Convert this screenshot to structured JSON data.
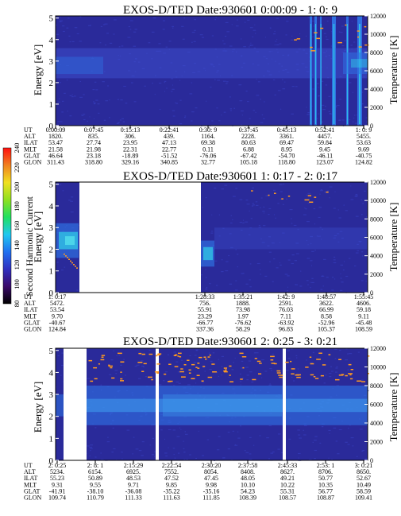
{
  "colors": {
    "background": "#2a2a9a",
    "band": "#2f6fe0",
    "band_core": "#3fa0f0",
    "cyan": "#30d0e8",
    "orange": "#ff9a20",
    "gap": "#ffffff"
  },
  "colorbar": {
    "label": "Second Harmonic Current",
    "ticks": [
      "80",
      "100",
      "120",
      "140",
      "160",
      "180",
      "200",
      "220",
      "240"
    ],
    "stops": [
      "#000000",
      "#3a0a6a",
      "#3030c0",
      "#2070f0",
      "#20c8f0",
      "#20e060",
      "#90e020",
      "#f0e020",
      "#f08020",
      "#ff1010"
    ]
  },
  "chart_data": [
    {
      "type": "heatmap",
      "title": "EXOS-D/TED   Date:930601  0:00:09 - 1: 0: 9",
      "ylabel": "Energy [eV]",
      "ylabel_right": "Temperature [K]",
      "yticks": [
        "0",
        "1",
        "2",
        "3",
        "4",
        "5"
      ],
      "ylim": [
        0,
        5.1
      ],
      "yticks_right": [
        "0",
        "2000",
        "4000",
        "6000",
        "8000",
        "10000",
        "12000"
      ],
      "ylim_right": [
        0,
        12000
      ],
      "ephemeris": {
        "labels": [
          "UT",
          "ALT",
          "ILAT",
          "MLT",
          "GLAT",
          "GLON"
        ],
        "columns": [
          [
            "0:00:09",
            "1820.",
            "53.47",
            "21.58",
            "46.64",
            "311.43"
          ],
          [
            "0:07:45",
            "835.",
            "27.74",
            "21.98",
            "23.18",
            "318.80"
          ],
          [
            "0:15:13",
            "306.",
            "23.95",
            "22.31",
            "-18.89",
            "329.16"
          ],
          [
            "0:22:41",
            "439.",
            "47.13",
            "22.77",
            "-51.52",
            "340.85"
          ],
          [
            "0:30: 9",
            "1164.",
            "69.38",
            "0.11",
            "-76.06",
            "32.77"
          ],
          [
            "0:37:45",
            "2228.",
            "80.63",
            "6.88",
            "-67.42",
            "105.18"
          ],
          [
            "0:45:13",
            "3361.",
            "69.47",
            "8.95",
            "-54.70",
            "118.80"
          ],
          [
            "0:52:41",
            "4457.",
            "59.84",
            "9.45",
            "-46.11",
            "123.07"
          ],
          [
            "1: 0: 9",
            "5455.",
            "53.63",
            "9.69",
            "-40.75",
            "124.82"
          ]
        ]
      }
    },
    {
      "type": "heatmap",
      "title": "EXOS-D/TED   Date:930601  1: 0:17 - 2: 0:17",
      "ylabel": "Energy [eV]",
      "ylabel_right": "Temperature [K]",
      "yticks": [
        "0",
        "1",
        "2",
        "3",
        "4",
        "5"
      ],
      "ylim": [
        0,
        5.1
      ],
      "yticks_right": [
        "0",
        "2000",
        "4000",
        "6000",
        "8000",
        "10000",
        "12000"
      ],
      "ylim_right": [
        0,
        12000
      ],
      "ephemeris": {
        "labels": [
          "UT",
          "ALT",
          "ILAT",
          "MLT",
          "GLAT",
          "GLON"
        ],
        "columns": [
          [
            "1: 0:17",
            "5472.",
            "53.54",
            "9.70",
            "-40.67",
            "124.84"
          ],
          [
            "1:28:33",
            "756.",
            "55.91",
            "23.29",
            "-66.77",
            "337.36"
          ],
          [
            "1:35:21",
            "1888.",
            "73.98",
            "1.97",
            "-76.62",
            "58.29"
          ],
          [
            "1:42: 9",
            "2591.",
            "76.03",
            "7.11",
            "-63.92",
            "96.83"
          ],
          [
            "1:48:57",
            "3622.",
            "66.99",
            "8.58",
            "-52.96",
            "105.37"
          ],
          [
            "1:55:45",
            "4606.",
            "59.18",
            "9.11",
            "-45.48",
            "108.59"
          ]
        ]
      }
    },
    {
      "type": "heatmap",
      "title": "EXOS-D/TED   Date:930601  2: 0:25 - 3: 0:21",
      "ylabel": "Energy [eV]",
      "ylabel_right": "Temperature [K]",
      "yticks": [
        "0",
        "1",
        "2",
        "3",
        "4",
        "5"
      ],
      "ylim": [
        0,
        5.1
      ],
      "yticks_right": [
        "0",
        "2000",
        "4000",
        "6000",
        "8000",
        "10000",
        "12000"
      ],
      "ylim_right": [
        0,
        12000
      ],
      "ephemeris": {
        "labels": [
          "UT",
          "ALT",
          "ILAT",
          "MLT",
          "GLAT",
          "GLON"
        ],
        "columns": [
          [
            "2: 0:25",
            "5234.",
            "55.23",
            "9.31",
            "-41.91",
            "109.74"
          ],
          [
            "2: 8: 1",
            "6154.",
            "50.89",
            "9.55",
            "-38.10",
            "110.79"
          ],
          [
            "2:15:29",
            "6925.",
            "48.53",
            "9.71",
            "-36.08",
            "111.33"
          ],
          [
            "2:22:54",
            "7552.",
            "47.52",
            "9.85",
            "-35.22",
            "111.63"
          ],
          [
            "2:30:20",
            "8054.",
            "47.45",
            "9.98",
            "-35.16",
            "111.85"
          ],
          [
            "2:37:58",
            "8408.",
            "48.05",
            "10.10",
            "54.23",
            "108.39"
          ],
          [
            "2:45:33",
            "8627.",
            "49.21",
            "10.22",
            "55.31",
            "108.57"
          ],
          [
            "2:53: 1",
            "8706.",
            "50.77",
            "10.35",
            "56.77",
            "108.87"
          ],
          [
            "3: 0:21",
            "8650.",
            "52.67",
            "10.49",
            "58.59",
            "109.41"
          ]
        ]
      }
    }
  ]
}
